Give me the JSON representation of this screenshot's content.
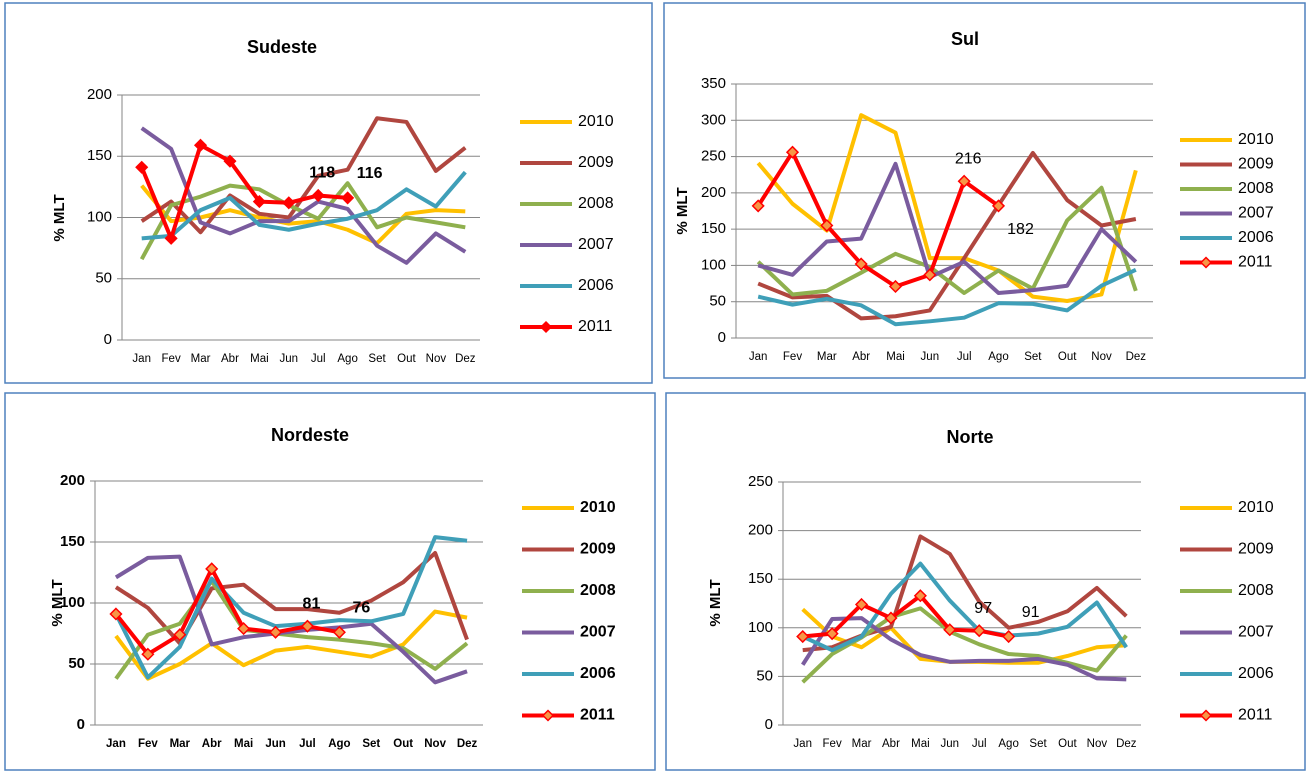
{
  "chart_data": [
    {
      "type": "line",
      "title": "Sudeste",
      "ylabel": "% MLT",
      "categories": [
        "Jan",
        "Fev",
        "Mar",
        "Abr",
        "Mai",
        "Jun",
        "Jul",
        "Ago",
        "Set",
        "Out",
        "Nov",
        "Dez"
      ],
      "ylim": [
        0,
        200
      ],
      "yticks": [
        0,
        50,
        100,
        150,
        200
      ],
      "series": [
        {
          "name": "2010",
          "color": "#FFC000",
          "values": [
            126,
            97,
            100,
            106,
            100,
            95,
            97,
            90,
            79,
            103,
            106,
            105
          ]
        },
        {
          "name": "2009",
          "color": "#B0463F",
          "values": [
            97,
            113,
            88,
            118,
            103,
            100,
            134,
            139,
            181,
            178,
            138,
            157
          ]
        },
        {
          "name": "2008",
          "color": "#8FB04E",
          "values": [
            66,
            110,
            117,
            126,
            123,
            110,
            99,
            128,
            92,
            100,
            96,
            92
          ]
        },
        {
          "name": "2007",
          "color": "#7A5C9E",
          "values": [
            173,
            156,
            96,
            87,
            97,
            97,
            113,
            107,
            77,
            63,
            87,
            72
          ]
        },
        {
          "name": "2006",
          "color": "#3F9FB8",
          "values": [
            83,
            85,
            106,
            116,
            94,
            90,
            95,
            99,
            106,
            123,
            109,
            137
          ]
        },
        {
          "name": "2011",
          "color": "#FF0000",
          "marker_color": "#FF0000",
          "values": [
            141,
            83,
            159,
            146,
            113,
            112,
            118,
            116,
            null,
            null,
            null,
            null
          ],
          "value_labels": [
            null,
            null,
            null,
            null,
            null,
            null,
            "118",
            "116",
            null,
            null,
            null,
            null
          ]
        }
      ]
    },
    {
      "type": "line",
      "title": "Sul",
      "ylabel": "% MLT",
      "categories": [
        "Jan",
        "Fev",
        "Mar",
        "Abr",
        "Mai",
        "Jun",
        "Jul",
        "Ago",
        "Set",
        "Out",
        "Nov",
        "Dez"
      ],
      "ylim": [
        0,
        350
      ],
      "yticks": [
        0,
        50,
        100,
        150,
        200,
        250,
        300,
        350
      ],
      "series": [
        {
          "name": "2010",
          "color": "#FFC000",
          "values": [
            241,
            185,
            148,
            307,
            283,
            110,
            110,
            93,
            57,
            51,
            60,
            231
          ]
        },
        {
          "name": "2009",
          "color": "#B0463F",
          "values": [
            75,
            56,
            58,
            27,
            30,
            38,
            110,
            183,
            255,
            190,
            155,
            164
          ]
        },
        {
          "name": "2008",
          "color": "#8FB04E",
          "values": [
            105,
            60,
            65,
            90,
            116,
            98,
            62,
            93,
            68,
            162,
            207,
            65
          ]
        },
        {
          "name": "2007",
          "color": "#7A5C9E",
          "values": [
            100,
            87,
            133,
            137,
            240,
            84,
            105,
            62,
            66,
            72,
            150,
            105
          ]
        },
        {
          "name": "2006",
          "color": "#3F9FB8",
          "values": [
            57,
            46,
            54,
            45,
            19,
            23,
            28,
            48,
            47,
            38,
            72,
            94
          ]
        },
        {
          "name": "2011",
          "color": "#FF0000",
          "marker_color": "#F79646",
          "values": [
            182,
            256,
            155,
            102,
            71,
            87,
            216,
            182,
            null,
            null,
            null,
            null
          ],
          "value_labels": [
            null,
            null,
            null,
            null,
            null,
            null,
            "216",
            "182",
            null,
            null,
            null,
            null
          ]
        }
      ]
    },
    {
      "type": "line",
      "title": "Nordeste",
      "ylabel": "% MLT",
      "categories": [
        "Jan",
        "Fev",
        "Mar",
        "Abr",
        "Mai",
        "Jun",
        "Jul",
        "Ago",
        "Set",
        "Out",
        "Nov",
        "Dez"
      ],
      "ylim": [
        0,
        200
      ],
      "yticks": [
        0,
        50,
        100,
        150,
        200
      ],
      "series": [
        {
          "name": "2010",
          "color": "#FFC000",
          "values": [
            73,
            38,
            50,
            67,
            49,
            61,
            64,
            60,
            56,
            66,
            93,
            88
          ]
        },
        {
          "name": "2009",
          "color": "#B0463F",
          "values": [
            113,
            96,
            67,
            112,
            115,
            95,
            95,
            92,
            102,
            117,
            141,
            70
          ]
        },
        {
          "name": "2008",
          "color": "#8FB04E",
          "values": [
            38,
            74,
            83,
            118,
            78,
            75,
            72,
            70,
            67,
            63,
            46,
            67
          ]
        },
        {
          "name": "2007",
          "color": "#7A5C9E",
          "values": [
            121,
            137,
            138,
            66,
            72,
            75,
            78,
            80,
            83,
            60,
            35,
            44
          ]
        },
        {
          "name": "2006",
          "color": "#3F9FB8",
          "values": [
            91,
            39,
            64,
            120,
            92,
            81,
            83,
            86,
            85,
            91,
            154,
            151
          ]
        },
        {
          "name": "2011",
          "color": "#FF0000",
          "marker_color": "#F79646",
          "values": [
            91,
            58,
            74,
            128,
            79,
            76,
            81,
            76,
            null,
            null,
            null,
            null
          ],
          "value_labels": [
            null,
            null,
            null,
            null,
            null,
            null,
            "81",
            "76",
            null,
            null,
            null,
            null
          ]
        }
      ]
    },
    {
      "type": "line",
      "title": "Norte",
      "ylabel": "% MLT",
      "categories": [
        "Jan",
        "Fev",
        "Mar",
        "Abr",
        "Mai",
        "Jun",
        "Jul",
        "Ago",
        "Set",
        "Out",
        "Nov",
        "Dez"
      ],
      "ylim": [
        0,
        250
      ],
      "yticks": [
        0,
        50,
        100,
        150,
        200,
        250
      ],
      "series": [
        {
          "name": "2010",
          "color": "#FFC000",
          "values": [
            119,
            91,
            80,
            100,
            68,
            65,
            65,
            64,
            64,
            71,
            80,
            82
          ]
        },
        {
          "name": "2009",
          "color": "#B0463F",
          "values": [
            77,
            80,
            92,
            101,
            194,
            176,
            127,
            100,
            106,
            117,
            141,
            112
          ]
        },
        {
          "name": "2008",
          "color": "#8FB04E",
          "values": [
            44,
            73,
            90,
            111,
            120,
            96,
            83,
            73,
            71,
            64,
            56,
            92
          ]
        },
        {
          "name": "2007",
          "color": "#7A5C9E",
          "values": [
            62,
            109,
            110,
            88,
            72,
            65,
            66,
            66,
            68,
            62,
            48,
            47
          ]
        },
        {
          "name": "2006",
          "color": "#3F9FB8",
          "values": [
            91,
            77,
            91,
            135,
            166,
            128,
            97,
            92,
            94,
            101,
            126,
            80
          ]
        },
        {
          "name": "2011",
          "color": "#FF0000",
          "marker_color": "#F79646",
          "values": [
            91,
            94,
            124,
            110,
            133,
            98,
            97,
            91,
            null,
            null,
            null,
            null
          ],
          "value_labels": [
            null,
            null,
            null,
            null,
            null,
            null,
            "97",
            "91",
            null,
            null,
            null,
            null
          ]
        }
      ]
    }
  ]
}
